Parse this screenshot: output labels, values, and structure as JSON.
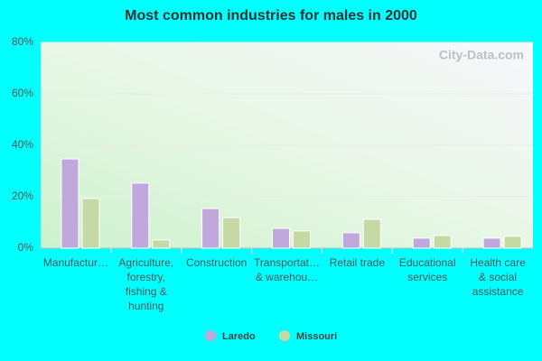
{
  "chart_data": {
    "type": "bar",
    "title": "Most common industries for males in 2000",
    "watermark": "City-Data.com",
    "categories": [
      "Manufactur…",
      "Agriculture,\nforestry,\nfishing &\nhunting",
      "Construction",
      "Transportat…\n& warehou…",
      "Retail trade",
      "Educational\nservices",
      "Health care\n& social\nassistance"
    ],
    "series": [
      {
        "name": "Laredo",
        "color": "#c0a8dc",
        "values": [
          34.7,
          25.3,
          15.4,
          7.7,
          6.0,
          3.9,
          3.9
        ]
      },
      {
        "name": "Missouri",
        "color": "#c5d9a5",
        "values": [
          19.3,
          3.2,
          11.9,
          6.7,
          11.2,
          4.9,
          4.6
        ]
      }
    ],
    "ylim": [
      0,
      80
    ],
    "yticks": [
      {
        "value": 0,
        "label": "0%"
      },
      {
        "value": 20,
        "label": "20%"
      },
      {
        "value": 40,
        "label": "40%"
      },
      {
        "value": 60,
        "label": "60%"
      },
      {
        "value": 80,
        "label": "80%"
      }
    ],
    "grid": true,
    "legend": "bottom"
  }
}
